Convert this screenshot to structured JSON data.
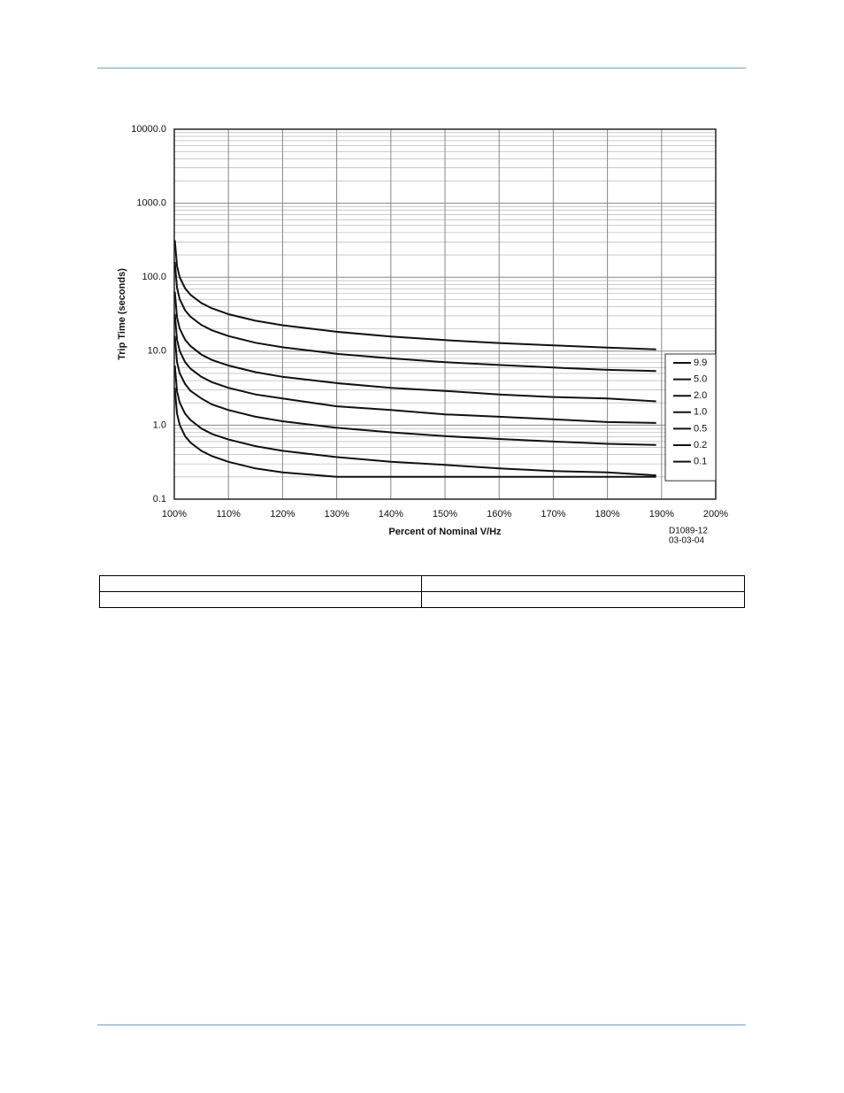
{
  "chart_data": {
    "type": "line",
    "y_label": "Trip Time (seconds)",
    "x_label": "Percent of Nominal V/Hz",
    "annotations": [
      "D1089-12",
      "03-03-04"
    ],
    "x": [
      100.1,
      100.5,
      101,
      102,
      103,
      105,
      107,
      110,
      115,
      120,
      130,
      140,
      150,
      160,
      170,
      180,
      189
    ],
    "series": [
      {
        "name": "9.9",
        "color": "#111111",
        "values": [
          316,
          141,
          100,
          70.7,
          57.7,
          44.7,
          37.8,
          31.6,
          25.8,
          22.4,
          18.3,
          15.8,
          14.1,
          12.9,
          12.0,
          11.2,
          10.6
        ]
      },
      {
        "name": "5.0",
        "color": "#111111",
        "values": [
          160,
          71.4,
          50.5,
          35.7,
          29.2,
          22.6,
          19.1,
          16.0,
          13.0,
          11.3,
          9.2,
          8.0,
          7.1,
          6.5,
          6.0,
          5.6,
          5.4
        ]
      },
      {
        "name": "2.0",
        "color": "#111111",
        "values": [
          63.9,
          28.6,
          20.2,
          14.3,
          11.7,
          9.0,
          7.6,
          6.4,
          5.2,
          4.5,
          3.7,
          3.2,
          2.9,
          2.6,
          2.4,
          2.3,
          2.1
        ]
      },
      {
        "name": "1.0",
        "color": "#111111",
        "values": [
          31.9,
          14.3,
          10.1,
          7.1,
          5.8,
          4.5,
          3.8,
          3.2,
          2.6,
          2.3,
          1.8,
          1.6,
          1.4,
          1.3,
          1.2,
          1.1,
          1.07
        ]
      },
      {
        "name": "0.5",
        "color": "#111111",
        "values": [
          16.0,
          7.1,
          5.05,
          3.6,
          2.9,
          2.3,
          1.9,
          1.6,
          1.3,
          1.13,
          0.92,
          0.8,
          0.71,
          0.65,
          0.6,
          0.56,
          0.54
        ]
      },
      {
        "name": "0.2",
        "color": "#111111",
        "values": [
          6.4,
          2.86,
          2.02,
          1.43,
          1.17,
          0.9,
          0.76,
          0.64,
          0.52,
          0.45,
          0.37,
          0.32,
          0.29,
          0.26,
          0.24,
          0.23,
          0.21
        ]
      },
      {
        "name": "0.1",
        "color": "#111111",
        "values": [
          3.2,
          1.43,
          1.01,
          0.71,
          0.58,
          0.45,
          0.38,
          0.32,
          0.26,
          0.23,
          0.2,
          0.2,
          0.2,
          0.2,
          0.2,
          0.2,
          0.2
        ]
      }
    ],
    "xlim": [
      100,
      200
    ],
    "xticks": [
      {
        "value": 100,
        "label": "100%"
      },
      {
        "value": 110,
        "label": "110%"
      },
      {
        "value": 120,
        "label": "120%"
      },
      {
        "value": 130,
        "label": "130%"
      },
      {
        "value": 140,
        "label": "140%"
      },
      {
        "value": 150,
        "label": "150%"
      },
      {
        "value": 160,
        "label": "160%"
      },
      {
        "value": 170,
        "label": "170%"
      },
      {
        "value": 180,
        "label": "180%"
      },
      {
        "value": 190,
        "label": "190%"
      },
      {
        "value": 200,
        "label": "200%"
      }
    ],
    "ylim": [
      0.1,
      10000
    ],
    "yticks": [
      0.1,
      {
        "value": 1,
        "label": "1.0"
      },
      {
        "value": 10,
        "label": "10.0"
      },
      {
        "value": 100,
        "label": "100.0"
      },
      {
        "value": 1000,
        "label": "1000.0"
      },
      {
        "value": 10000,
        "label": "10000.0"
      }
    ],
    "log_y": true,
    "grid": true,
    "legend": "right"
  }
}
